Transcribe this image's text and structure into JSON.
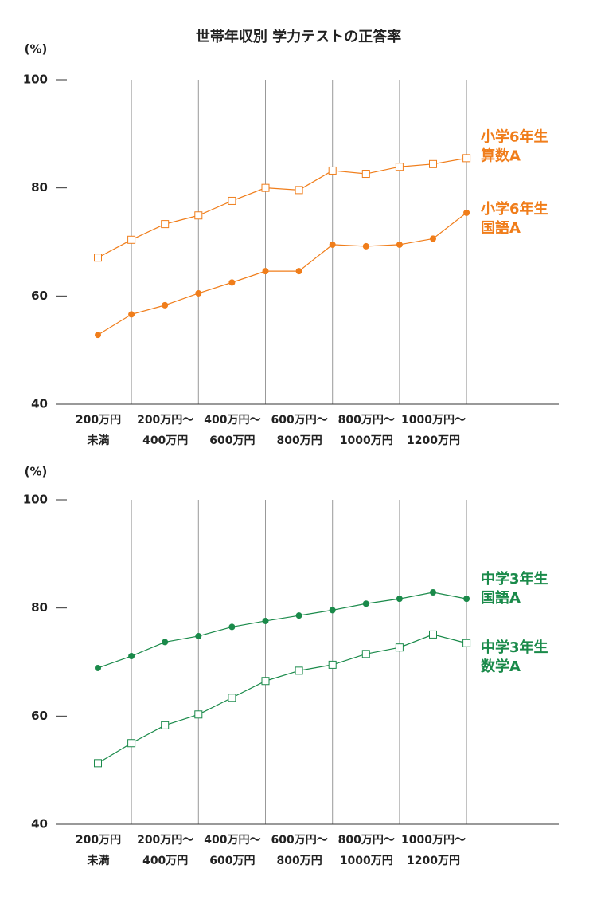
{
  "title": "世帯年収別 学力テストの正答率",
  "chart_data": [
    {
      "type": "line",
      "y_label": "(%)",
      "ylim": [
        40,
        100
      ],
      "yticks": [
        40,
        60,
        80,
        100
      ],
      "categories": [
        "200万円\n未満",
        null,
        "200万円～\n400万円",
        null,
        "400万円～\n600万円",
        null,
        "600万円～\n800万円",
        null,
        "800万円～\n1000万円",
        null,
        "1000万円～\n1200万円",
        null
      ],
      "series": [
        {
          "name": "小学6年生\n算数A",
          "color": "#f07d1a",
          "marker": "square",
          "values": [
            67.1,
            70.4,
            73.3,
            74.9,
            77.6,
            80.0,
            79.6,
            83.2,
            82.6,
            83.9,
            84.4,
            85.5
          ]
        },
        {
          "name": "小学6年生\n国語A",
          "color": "#f07d1a",
          "marker": "circle",
          "values": [
            52.8,
            56.6,
            58.3,
            60.5,
            62.5,
            64.6,
            64.6,
            69.5,
            69.2,
            69.5,
            70.6,
            75.4
          ]
        }
      ]
    },
    {
      "type": "line",
      "y_label": "(%)",
      "ylim": [
        40,
        100
      ],
      "yticks": [
        40,
        60,
        80,
        100
      ],
      "categories": [
        "200万円\n未満",
        null,
        "200万円～\n400万円",
        null,
        "400万円～\n600万円",
        null,
        "600万円～\n800万円",
        null,
        "800万円～\n1000万円",
        null,
        "1000万円～\n1200万円",
        null
      ],
      "series": [
        {
          "name": "中学3年生\n国語A",
          "color": "#1a8a4a",
          "marker": "circle",
          "values": [
            68.9,
            71.1,
            73.7,
            74.8,
            76.5,
            77.6,
            78.6,
            79.6,
            80.8,
            81.7,
            82.9,
            81.7
          ]
        },
        {
          "name": "中学3年生\n数学A",
          "color": "#1a8a4a",
          "marker": "square",
          "values": [
            51.3,
            55.0,
            58.3,
            60.3,
            63.4,
            66.5,
            68.4,
            69.5,
            71.5,
            72.7,
            75.1,
            73.5
          ]
        }
      ]
    }
  ]
}
